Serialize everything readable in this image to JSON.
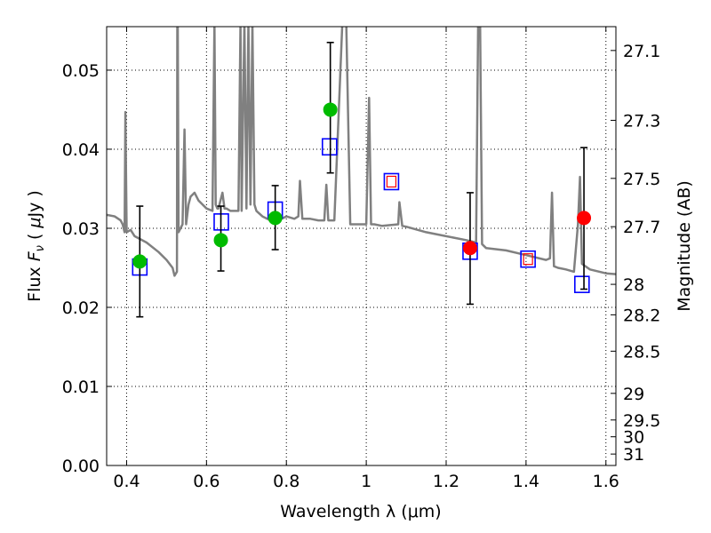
{
  "chart_data": {
    "type": "scatter",
    "xlabel": "Wavelength  λ (μm)",
    "ylabel": "Flux  F_ν  ( μJy )",
    "ylabel_parts": {
      "prefix": "Flux  ",
      "symbol": "F",
      "subscript": "ν",
      "paren_open": "  ( ",
      "unit_mu": "μ",
      "unit": "Jy",
      "paren_close": " )"
    },
    "y2label": "Magnitude (AB)",
    "xlim": [
      0.35,
      1.625
    ],
    "ylim": [
      0.0,
      0.0555
    ],
    "x_ticks": [
      0.4,
      0.6,
      0.8,
      1.0,
      1.2,
      1.4,
      1.6
    ],
    "x_tick_labels": [
      "0.4",
      "0.6",
      "0.8",
      "1",
      "1.2",
      "1.4",
      "1.6"
    ],
    "y_ticks": [
      0.0,
      0.01,
      0.02,
      0.03,
      0.04,
      0.05
    ],
    "y_tick_labels": [
      "0.00",
      "0.01",
      "0.02",
      "0.03",
      "0.04",
      "0.05"
    ],
    "y2_ticks": [
      27.1,
      27.3,
      27.5,
      27.7,
      28,
      28.2,
      28.5,
      29,
      29.5,
      30,
      31
    ],
    "y2_tick_labels": [
      "27.1",
      "27.3",
      "27.5",
      "27.7",
      "28",
      "28.2",
      "28.5",
      "29",
      "29.5",
      "30",
      "31"
    ],
    "grid": true,
    "colors": {
      "spectrum": "#808080",
      "green_points": "#00bb00",
      "red_points": "#ff0000",
      "model_squares": "#0000ff",
      "error_bars": "#000000"
    },
    "spectrum": {
      "name": "",
      "x": [
        0.35,
        0.37,
        0.385,
        0.39,
        0.395,
        0.397,
        0.4,
        0.41,
        0.42,
        0.45,
        0.48,
        0.5,
        0.515,
        0.52,
        0.526,
        0.527,
        0.528,
        0.53,
        0.54,
        0.545,
        0.549,
        0.555,
        0.56,
        0.57,
        0.58,
        0.59,
        0.6,
        0.615,
        0.62,
        0.623,
        0.627,
        0.63,
        0.64,
        0.645,
        0.65,
        0.66,
        0.68,
        0.685,
        0.688,
        0.695,
        0.7,
        0.705,
        0.71,
        0.715,
        0.72,
        0.725,
        0.74,
        0.76,
        0.78,
        0.8,
        0.82,
        0.83,
        0.834,
        0.84,
        0.86,
        0.88,
        0.895,
        0.9,
        0.905,
        0.92,
        0.94,
        0.95,
        0.96,
        0.97,
        1.0,
        1.007,
        1.012,
        1.02,
        1.04,
        1.08,
        1.083,
        1.09,
        1.1,
        1.15,
        1.2,
        1.25,
        1.275,
        1.28,
        1.285,
        1.29,
        1.3,
        1.35,
        1.4,
        1.45,
        1.46,
        1.465,
        1.47,
        1.48,
        1.5,
        1.52,
        1.53,
        1.535,
        1.54,
        1.56,
        1.6,
        1.625
      ],
      "y": [
        0.0317,
        0.0315,
        0.031,
        0.0305,
        0.0295,
        0.0447,
        0.0295,
        0.0298,
        0.029,
        0.0282,
        0.027,
        0.026,
        0.025,
        0.024,
        0.0245,
        0.056,
        0.056,
        0.0295,
        0.0305,
        0.0425,
        0.0305,
        0.033,
        0.034,
        0.0345,
        0.0335,
        0.033,
        0.0325,
        0.0322,
        0.056,
        0.033,
        0.0325,
        0.0325,
        0.0345,
        0.0325,
        0.0325,
        0.0322,
        0.0322,
        0.056,
        0.0322,
        0.056,
        0.0325,
        0.056,
        0.033,
        0.056,
        0.033,
        0.0322,
        0.0315,
        0.031,
        0.031,
        0.0315,
        0.0312,
        0.0315,
        0.036,
        0.0312,
        0.0312,
        0.031,
        0.031,
        0.0355,
        0.031,
        0.031,
        0.056,
        0.056,
        0.0305,
        0.0305,
        0.0305,
        0.0465,
        0.0305,
        0.0305,
        0.0303,
        0.0305,
        0.0333,
        0.0303,
        0.0302,
        0.0295,
        0.029,
        0.0285,
        0.0282,
        0.056,
        0.056,
        0.028,
        0.0275,
        0.0272,
        0.0266,
        0.026,
        0.0262,
        0.0345,
        0.0252,
        0.025,
        0.0248,
        0.0245,
        0.0305,
        0.0365,
        0.0255,
        0.0248,
        0.0243,
        0.0242
      ]
    },
    "observed_green": [
      {
        "x": 0.433,
        "y": 0.0258,
        "err_lo": 0.0188,
        "err_hi": 0.0328
      },
      {
        "x": 0.636,
        "y": 0.0285,
        "err_lo": 0.0246,
        "err_hi": 0.0328
      },
      {
        "x": 0.772,
        "y": 0.0313,
        "err_lo": 0.0273,
        "err_hi": 0.0354
      },
      {
        "x": 0.91,
        "y": 0.045,
        "err_lo": 0.037,
        "err_hi": 0.0535
      }
    ],
    "observed_red": [
      {
        "x": 1.26,
        "y": 0.0275,
        "err_lo": 0.0204,
        "err_hi": 0.0345
      },
      {
        "x": 1.545,
        "y": 0.0313,
        "err_lo": 0.0223,
        "err_hi": 0.0402
      }
    ],
    "model_squares": [
      {
        "x": 0.433,
        "y": 0.0251
      },
      {
        "x": 0.637,
        "y": 0.0308
      },
      {
        "x": 0.772,
        "y": 0.0323
      },
      {
        "x": 0.908,
        "y": 0.0403
      },
      {
        "x": 1.063,
        "y": 0.0359
      },
      {
        "x": 1.26,
        "y": 0.0271
      },
      {
        "x": 1.405,
        "y": 0.0261
      },
      {
        "x": 1.54,
        "y": 0.0229
      }
    ],
    "model_squares_small_red": [
      {
        "x": 1.063,
        "y": 0.0359
      },
      {
        "x": 1.405,
        "y": 0.0261
      }
    ]
  }
}
